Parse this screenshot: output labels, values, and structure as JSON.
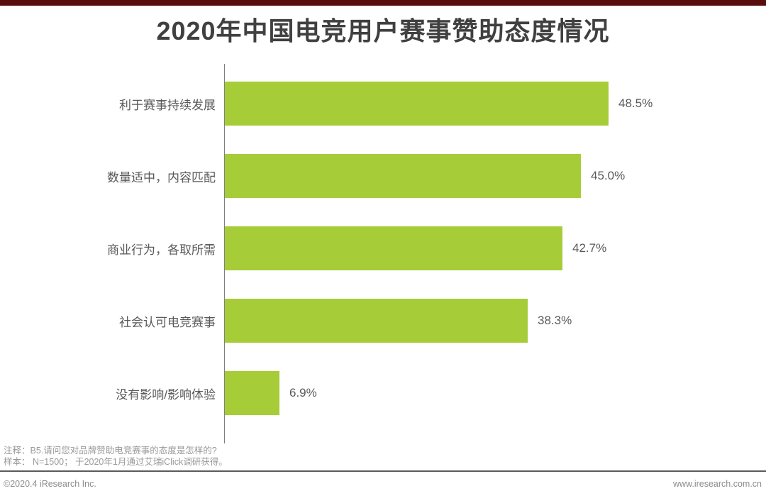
{
  "title": "2020年中国电竞用户赛事赞助态度情况",
  "accent_color": "#5a0d0d",
  "bar_color": "#a6cd38",
  "chart_data": {
    "type": "bar",
    "orientation": "horizontal",
    "title": "2020年中国电竞用户赛事赞助态度情况",
    "categories": [
      "利于赛事持续发展",
      "数量适中，内容匹配",
      "商业行为，各取所需",
      "社会认可电竞赛事",
      "没有影响/影响体验"
    ],
    "values": [
      48.5,
      45.0,
      42.7,
      38.3,
      6.9
    ],
    "value_labels": [
      "48.5%",
      "45.0%",
      "42.7%",
      "38.3%",
      "6.9%"
    ],
    "xlabel": "",
    "ylabel": "",
    "xlim": [
      0,
      50
    ],
    "grid": false,
    "legend": false,
    "data_labels_position": "outside-end"
  },
  "notes": {
    "line1": "注释：B5.请问您对品牌赞助电竞赛事的态度是怎样的?",
    "line2": "样本： N=1500； 于2020年1月通过艾瑞iClick调研获得。"
  },
  "footer": {
    "copyright": "©2020.4 iResearch Inc.",
    "website": "www.iresearch.com.cn"
  }
}
